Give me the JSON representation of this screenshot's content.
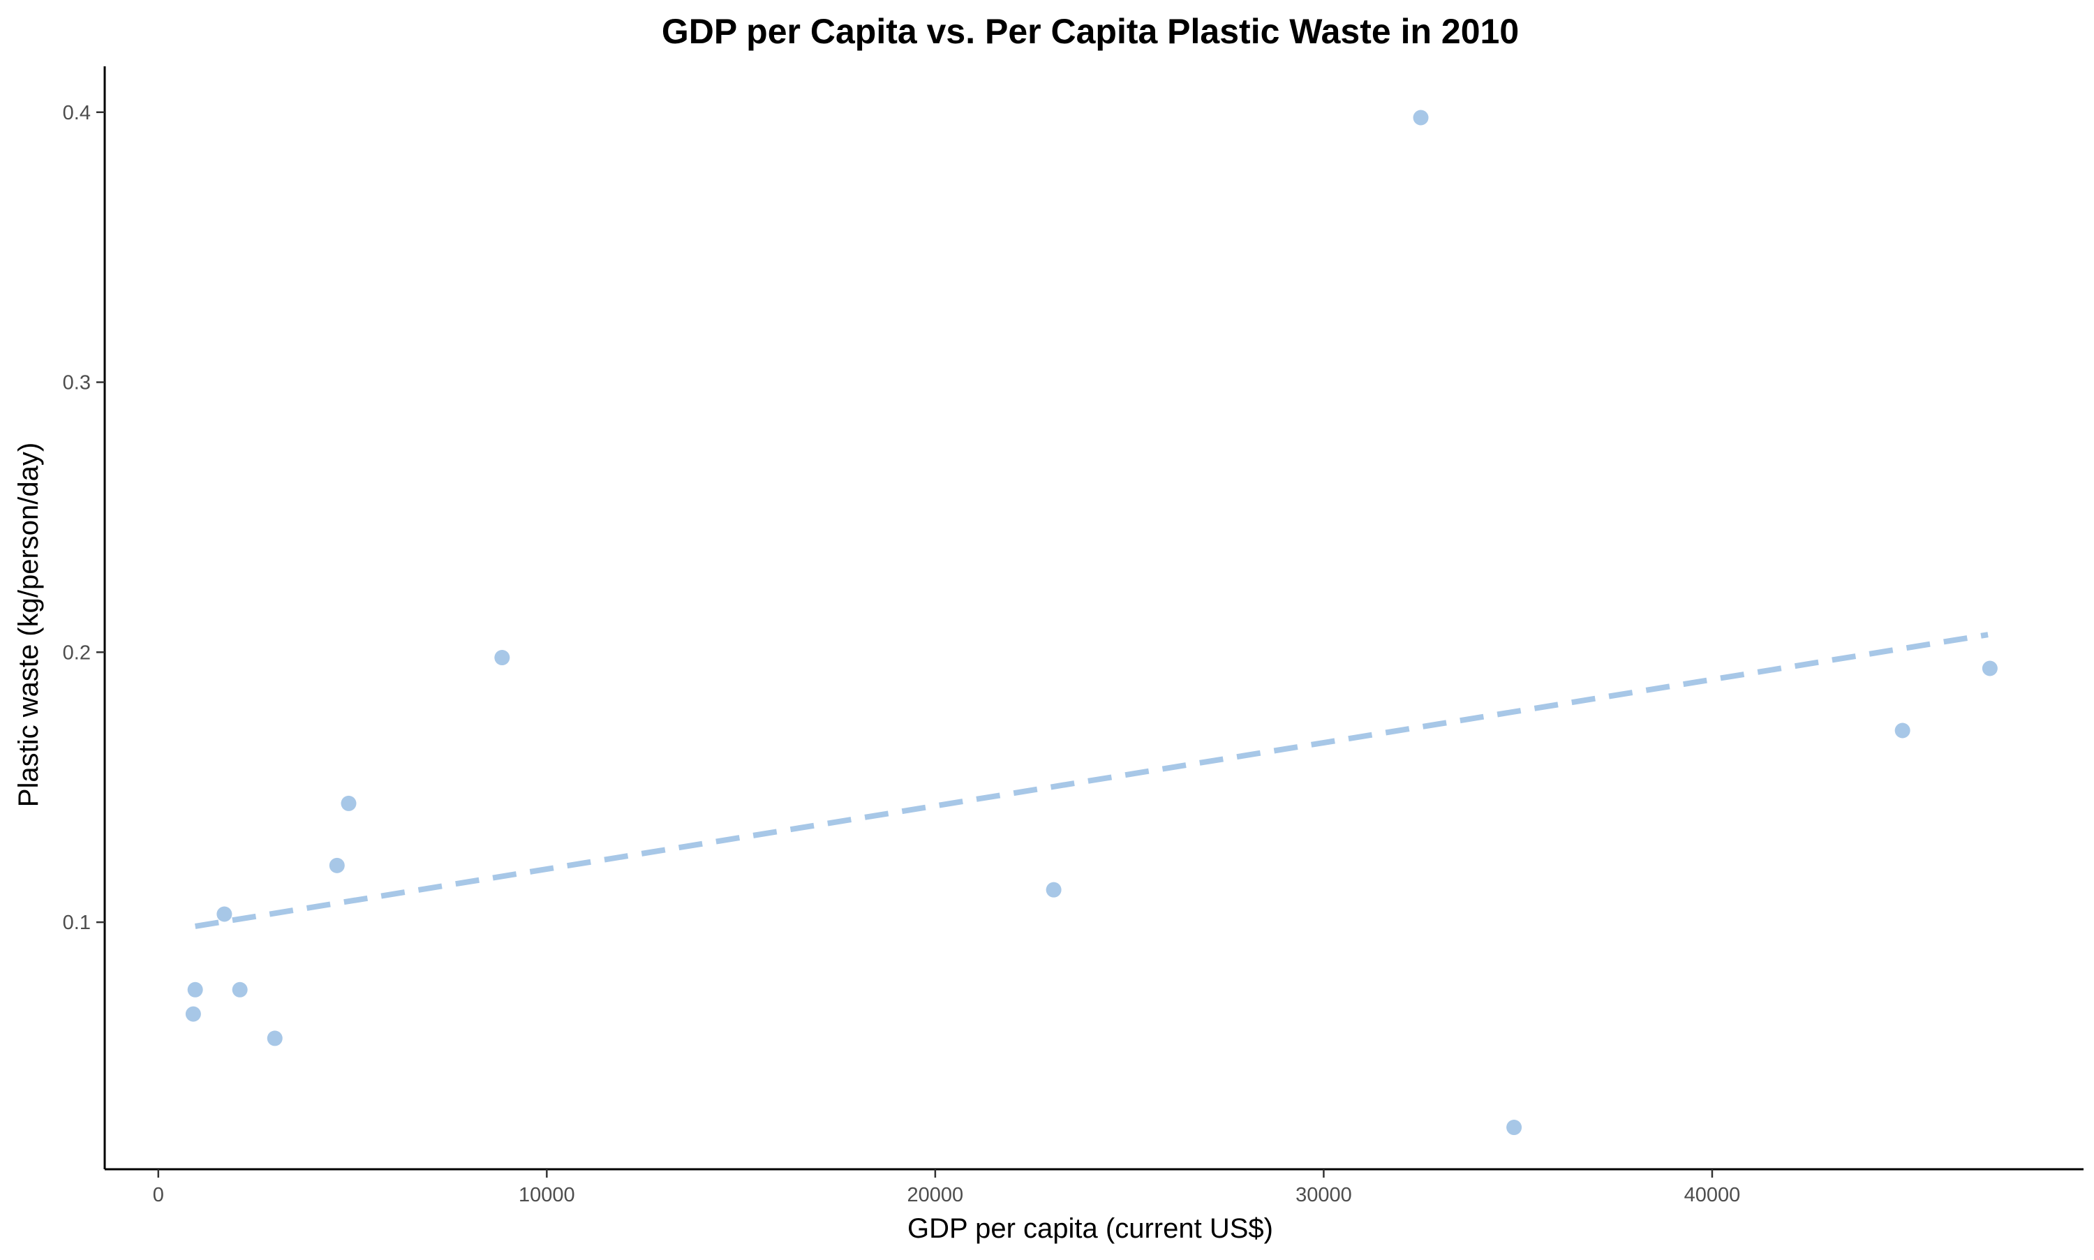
{
  "chart_data": {
    "type": "scatter",
    "title": "GDP per Capita vs. Per Capita Plastic Waste in 2010",
    "xlabel": "GDP per capita (current US$)",
    "ylabel": "Plastic waste (kg/person/day)",
    "xlim": [
      -1380,
      49560
    ],
    "ylim": [
      0.0085,
      0.417
    ],
    "x_ticks": [
      0,
      10000,
      20000,
      30000,
      40000
    ],
    "x_tick_labels": [
      "0",
      "10000",
      "20000",
      "30000",
      "40000"
    ],
    "y_ticks": [
      0.1,
      0.2,
      0.3,
      0.4
    ],
    "y_tick_labels": [
      "0.1",
      "0.2",
      "0.3",
      "0.4"
    ],
    "grid": false,
    "point_color": "#a7c7e7",
    "trend_color": "#a7c7e7",
    "trendline": {
      "style": "dashed",
      "x": [
        950,
        47100
      ],
      "y": [
        0.0985,
        0.2065
      ]
    },
    "points": [
      {
        "x": 900,
        "y": 0.066
      },
      {
        "x": 950,
        "y": 0.075
      },
      {
        "x": 1700,
        "y": 0.103
      },
      {
        "x": 2100,
        "y": 0.075
      },
      {
        "x": 3000,
        "y": 0.057
      },
      {
        "x": 4600,
        "y": 0.121
      },
      {
        "x": 4900,
        "y": 0.144
      },
      {
        "x": 8850,
        "y": 0.198
      },
      {
        "x": 23050,
        "y": 0.112
      },
      {
        "x": 32500,
        "y": 0.398
      },
      {
        "x": 34900,
        "y": 0.024
      },
      {
        "x": 44900,
        "y": 0.171
      },
      {
        "x": 47150,
        "y": 0.194
      }
    ]
  }
}
